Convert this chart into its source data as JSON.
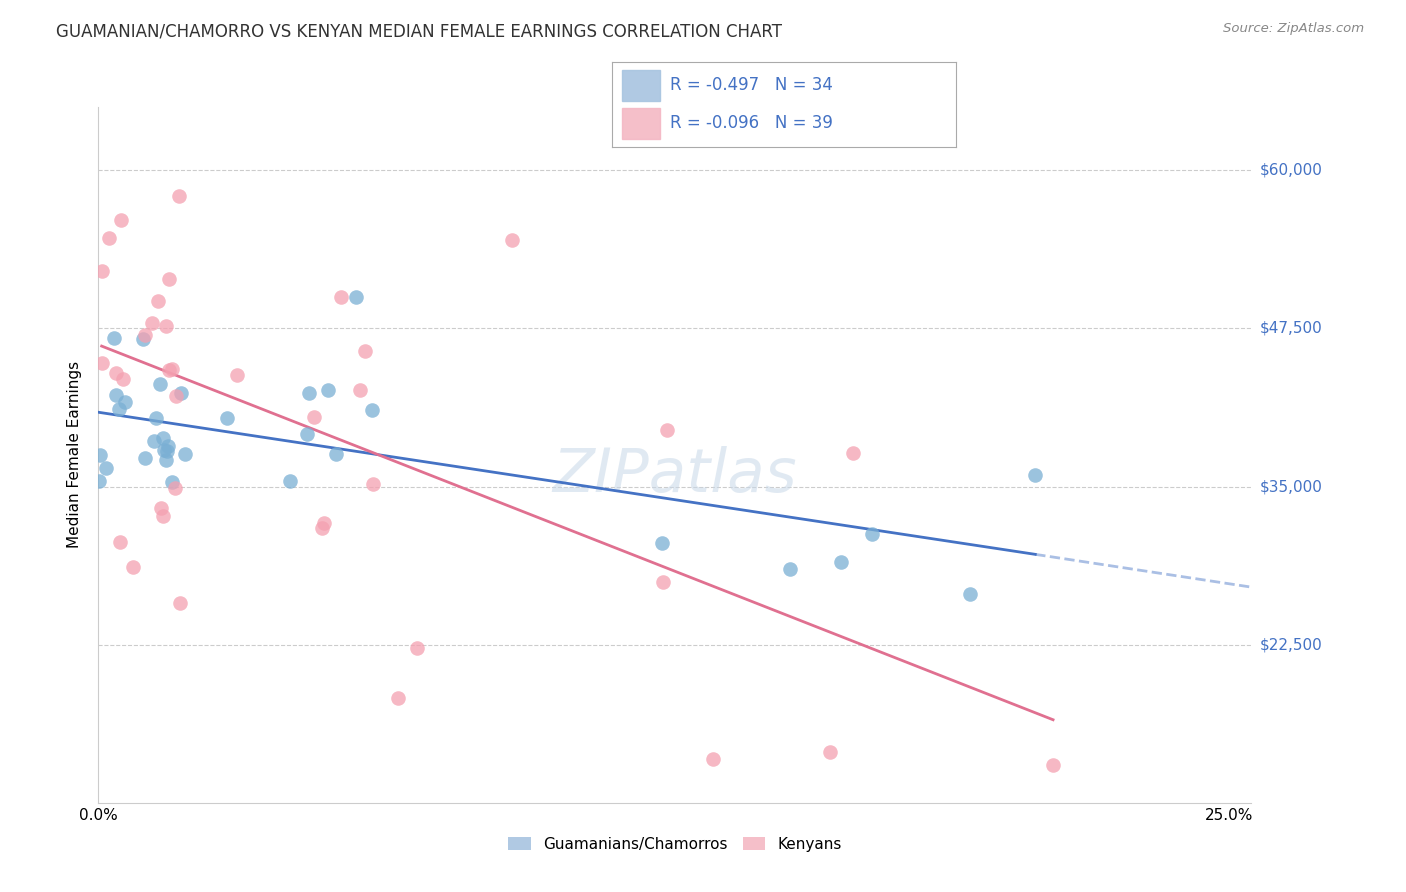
{
  "title": "GUAMANIAN/CHAMORRO VS KENYAN MEDIAN FEMALE EARNINGS CORRELATION CHART",
  "source": "Source: ZipAtlas.com",
  "ylabel": "Median Female Earnings",
  "xlim": [
    0.0,
    0.255
  ],
  "ylim": [
    10000,
    65000
  ],
  "ytick_vals": [
    22500,
    35000,
    47500,
    60000
  ],
  "ytick_labels": [
    "$22,500",
    "$35,000",
    "$47,500",
    "$60,000"
  ],
  "watermark": "ZIPatlas",
  "legend_label_blue": "Guamanians/Chamorros",
  "legend_label_pink": "Kenyans",
  "blue_scatter_color": "#7aafd4",
  "pink_scatter_color": "#f4a0b0",
  "line_blue": "#4472c4",
  "line_pink": "#e07090",
  "legend_blue_box": "#a8c4e0",
  "legend_pink_box": "#f4b8c4",
  "R_blue": "-0.497",
  "N_blue": "34",
  "R_pink": "-0.096",
  "N_pink": "39",
  "title_color": "#333333",
  "source_color": "#888888",
  "ytick_color": "#4472c4",
  "grid_color": "#cccccc",
  "watermark_color": "#c8d8e8"
}
